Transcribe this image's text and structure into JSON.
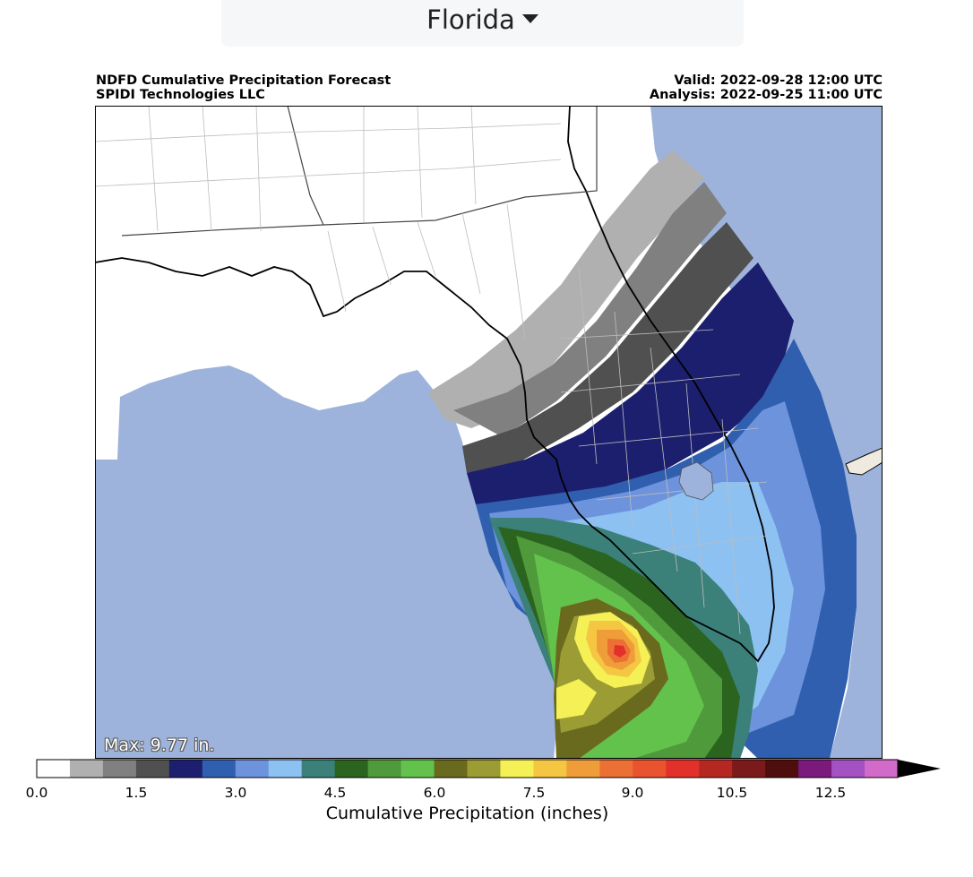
{
  "region_selector": {
    "label": "Florida"
  },
  "header": {
    "title": "NDFD Cumulative Precipitation Forecast",
    "subtitle": "SPIDI Technologies LLC",
    "valid": "Valid: 2022-09-28 12:00 UTC",
    "analysis": "Analysis: 2022-09-25 11:00 UTC"
  },
  "map": {
    "max_label": "Max: 9.77 in."
  },
  "colorbar": {
    "title": "Cumulative Precipitation (inches)",
    "ticks": [
      "0.0",
      "1.5",
      "3.0",
      "4.5",
      "6.0",
      "7.5",
      "9.0",
      "10.5",
      "12.5"
    ],
    "colors": [
      "#ffffff",
      "#b0b0b0",
      "#808080",
      "#505050",
      "#1c1f6e",
      "#2f5fae",
      "#6d93dc",
      "#8cc1f2",
      "#3b8079",
      "#2a641f",
      "#4f9a3b",
      "#63c24b",
      "#6a6a1f",
      "#9c9c35",
      "#f5f055",
      "#f4c642",
      "#ef9d38",
      "#ec7034",
      "#e9542f",
      "#e2312a",
      "#b52822",
      "#7b1a1a",
      "#4e0e0e",
      "#7a1a7d",
      "#a451c4",
      "#d16ac9"
    ],
    "extend_color": "#000000"
  }
}
